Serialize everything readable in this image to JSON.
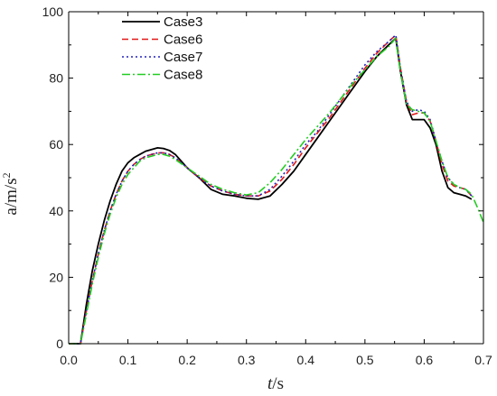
{
  "chart_data": {
    "type": "line",
    "title": "",
    "xlabel": "t/s",
    "ylabel": "a/m/s²",
    "ylabel_base": "a/m/s",
    "ylabel_sup": "2",
    "xlabel_italic": "t",
    "xlabel_rest": "/s",
    "xlim": [
      0.0,
      0.7
    ],
    "ylim": [
      0,
      100
    ],
    "xticks": [
      0.0,
      0.1,
      0.2,
      0.3,
      0.4,
      0.5,
      0.6,
      0.7
    ],
    "xtick_labels": [
      "0.0",
      "0.1",
      "0.2",
      "0.3",
      "0.4",
      "0.5",
      "0.6",
      "0.7"
    ],
    "yticks": [
      0,
      20,
      40,
      60,
      80,
      100
    ],
    "ytick_labels": [
      "0",
      "20",
      "40",
      "60",
      "80",
      "100"
    ],
    "grid": false,
    "legend_position": "top-left",
    "series": [
      {
        "name": "Case3",
        "color": "#000000",
        "dash": "solid",
        "x": [
          0.0,
          0.01,
          0.02,
          0.03,
          0.04,
          0.05,
          0.06,
          0.07,
          0.08,
          0.09,
          0.1,
          0.11,
          0.12,
          0.13,
          0.14,
          0.15,
          0.16,
          0.17,
          0.18,
          0.2,
          0.22,
          0.24,
          0.26,
          0.28,
          0.3,
          0.32,
          0.34,
          0.36,
          0.38,
          0.4,
          0.42,
          0.44,
          0.46,
          0.48,
          0.5,
          0.52,
          0.54,
          0.552,
          0.56,
          0.57,
          0.58,
          0.59,
          0.6,
          0.61,
          0.62,
          0.63,
          0.64,
          0.65,
          0.66,
          0.67,
          0.68
        ],
        "y": [
          0,
          0,
          0,
          12,
          22,
          30,
          37,
          43,
          48,
          52,
          54.5,
          56,
          57,
          58,
          58.5,
          59,
          58.8,
          58.2,
          57,
          53,
          50,
          46.5,
          45,
          44.5,
          43.8,
          43.5,
          44.5,
          48,
          52,
          57,
          62,
          67,
          72,
          77,
          82,
          86.5,
          90,
          92,
          82,
          72,
          67.5,
          67.5,
          67.5,
          65,
          60,
          52,
          47,
          45.5,
          45,
          44.5,
          43.5
        ]
      },
      {
        "name": "Case6",
        "color": "#e11919",
        "dash": "long",
        "x": [
          0.0,
          0.01,
          0.02,
          0.03,
          0.04,
          0.05,
          0.06,
          0.07,
          0.08,
          0.09,
          0.1,
          0.11,
          0.12,
          0.13,
          0.14,
          0.15,
          0.16,
          0.17,
          0.18,
          0.2,
          0.22,
          0.24,
          0.26,
          0.28,
          0.3,
          0.32,
          0.34,
          0.36,
          0.38,
          0.4,
          0.42,
          0.44,
          0.46,
          0.48,
          0.5,
          0.52,
          0.54,
          0.552,
          0.56,
          0.57,
          0.58,
          0.59,
          0.6,
          0.61,
          0.62,
          0.63,
          0.64,
          0.65,
          0.66,
          0.67,
          0.68
        ],
        "y": [
          0,
          0,
          0,
          10,
          19,
          27,
          34,
          40,
          45,
          49,
          52,
          54,
          55.5,
          56.5,
          57,
          57.5,
          57.5,
          57,
          56,
          53,
          50,
          47.5,
          46,
          45,
          44.5,
          44.5,
          46,
          49.5,
          54,
          59,
          63.5,
          68,
          73,
          78,
          83,
          87.5,
          91,
          93,
          83,
          73,
          69,
          69.5,
          69.5,
          67,
          61,
          54,
          49,
          47.5,
          47,
          46.5,
          44.5
        ]
      },
      {
        "name": "Case7",
        "color": "#2222bb",
        "dash": "dot",
        "x": [
          0.0,
          0.01,
          0.02,
          0.03,
          0.04,
          0.05,
          0.06,
          0.07,
          0.08,
          0.09,
          0.1,
          0.11,
          0.12,
          0.13,
          0.14,
          0.15,
          0.16,
          0.17,
          0.18,
          0.2,
          0.22,
          0.24,
          0.26,
          0.28,
          0.3,
          0.32,
          0.34,
          0.36,
          0.38,
          0.4,
          0.42,
          0.44,
          0.46,
          0.48,
          0.5,
          0.52,
          0.54,
          0.552,
          0.56,
          0.57,
          0.58,
          0.59,
          0.6,
          0.61,
          0.62,
          0.63,
          0.64,
          0.65,
          0.66,
          0.67,
          0.68
        ],
        "y": [
          0,
          0,
          0,
          10,
          19,
          27,
          34,
          40,
          45,
          49,
          52,
          54,
          55.5,
          56.5,
          57,
          57.5,
          57.5,
          57,
          56,
          53,
          50,
          47.5,
          46,
          45,
          44.5,
          44.5,
          46.5,
          50.5,
          55,
          60,
          64,
          69,
          74,
          79,
          84,
          88,
          91,
          93,
          83,
          73,
          70,
          70.5,
          70,
          67.5,
          61,
          55,
          50,
          48,
          47,
          46.5,
          44.5
        ]
      },
      {
        "name": "Case8",
        "color": "#22cc22",
        "dash": "dashdot",
        "x": [
          0.0,
          0.01,
          0.02,
          0.03,
          0.04,
          0.05,
          0.06,
          0.07,
          0.08,
          0.09,
          0.1,
          0.11,
          0.12,
          0.13,
          0.14,
          0.15,
          0.16,
          0.17,
          0.18,
          0.2,
          0.22,
          0.24,
          0.26,
          0.28,
          0.3,
          0.32,
          0.34,
          0.36,
          0.38,
          0.4,
          0.42,
          0.44,
          0.46,
          0.48,
          0.5,
          0.52,
          0.54,
          0.552,
          0.56,
          0.57,
          0.58,
          0.59,
          0.6,
          0.61,
          0.62,
          0.63,
          0.64,
          0.65,
          0.66,
          0.67,
          0.68,
          0.69,
          0.7
        ],
        "y": [
          0,
          0,
          0,
          9,
          18,
          26,
          33,
          39,
          44,
          48,
          51,
          53,
          55,
          56,
          56.5,
          57,
          57,
          56.5,
          55.5,
          53,
          50.5,
          48,
          46.5,
          45.5,
          44.8,
          45.5,
          48.5,
          52.5,
          57,
          61.5,
          65.5,
          69.5,
          74,
          78.5,
          82.5,
          86.5,
          89.5,
          92,
          82,
          72,
          70.5,
          70,
          69.5,
          67,
          61,
          55,
          50,
          48,
          47,
          46.5,
          45,
          41,
          36.5
        ]
      }
    ]
  }
}
